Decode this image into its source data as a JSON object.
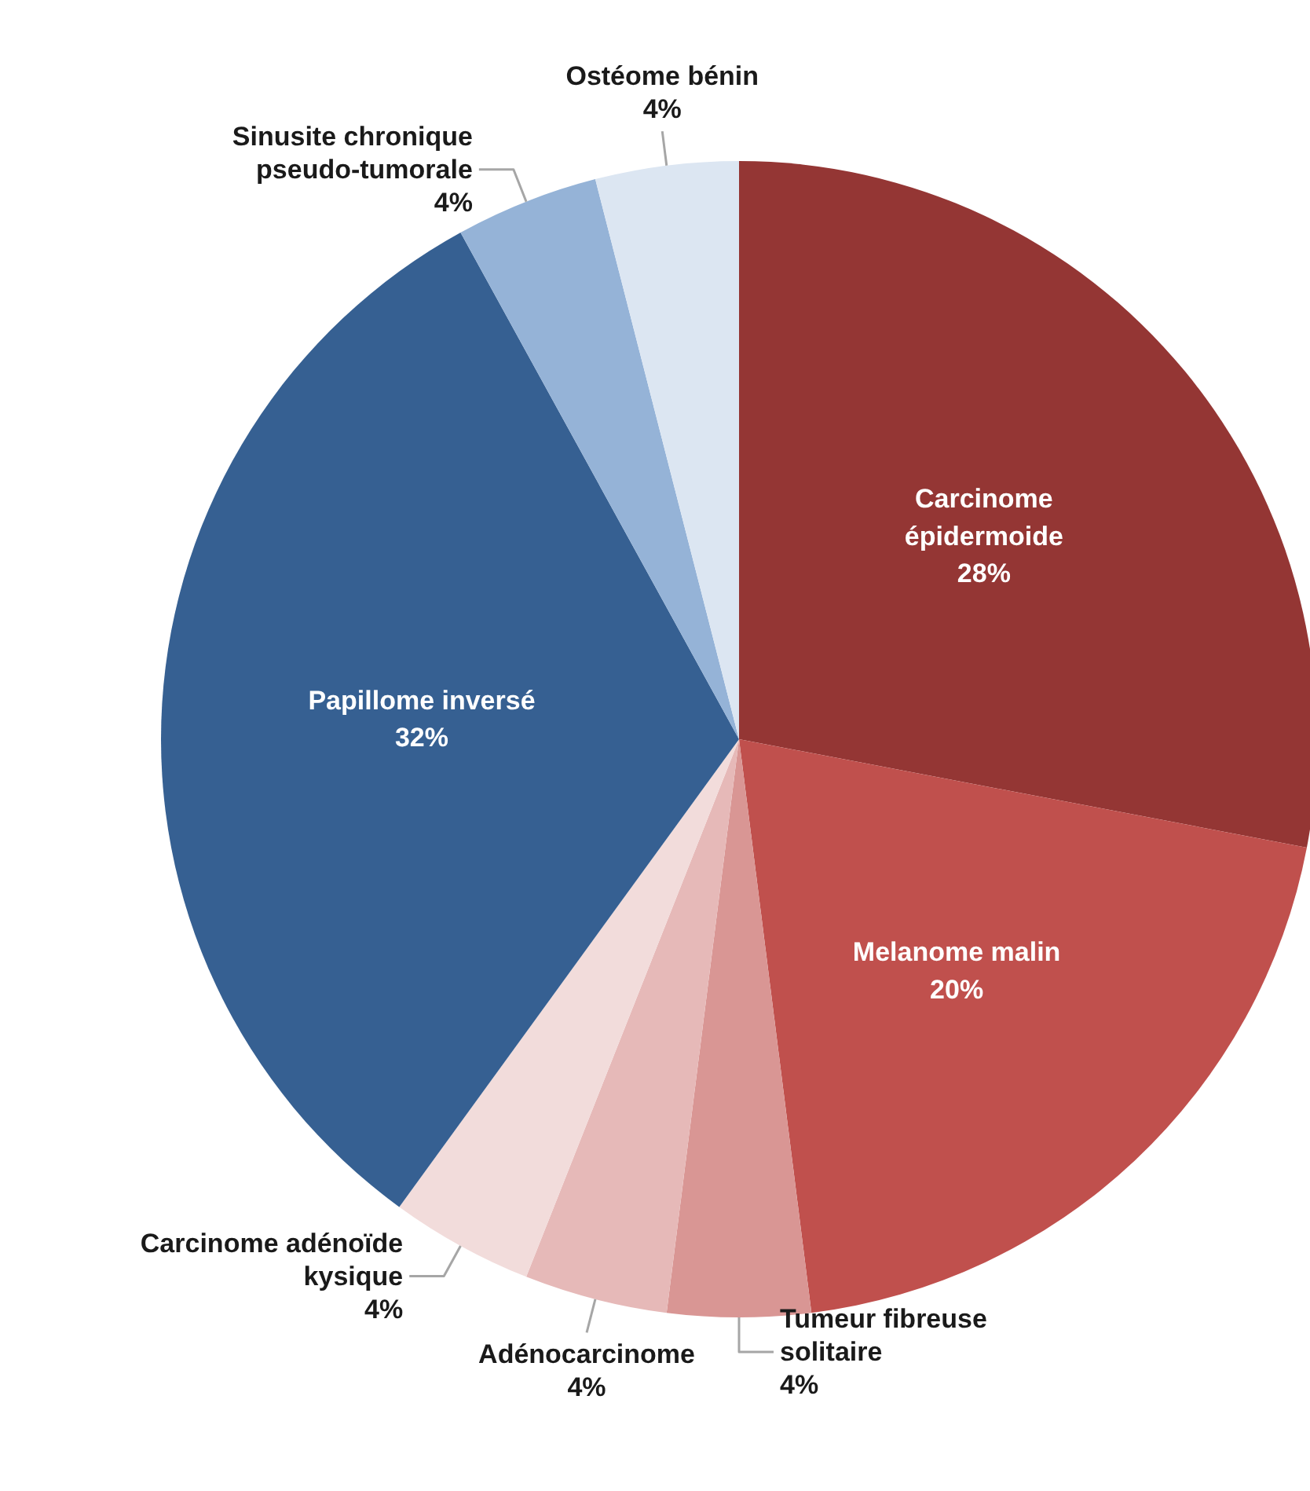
{
  "chart_data": {
    "type": "pie",
    "categories": [
      "Carcinome épidermoide",
      "Melanome malin",
      "Tumeur fibreuse solitaire",
      "Adénocarcinome",
      "Carcinome adénoïde kysique",
      "Papillome inversé",
      "Sinusite chronique pseudo-tumorale",
      "Ostéome bénin"
    ],
    "values": [
      28,
      20,
      4,
      4,
      4,
      32,
      4,
      4
    ],
    "colors": [
      "#943634",
      "#c0504d",
      "#d99694",
      "#e6b9b8",
      "#f2dcdb",
      "#366092",
      "#95b3d7",
      "#dce6f2"
    ],
    "value_labels": [
      "28%",
      "20%",
      "4%",
      "4%",
      "4%",
      "32%",
      "4%",
      "4%"
    ]
  }
}
